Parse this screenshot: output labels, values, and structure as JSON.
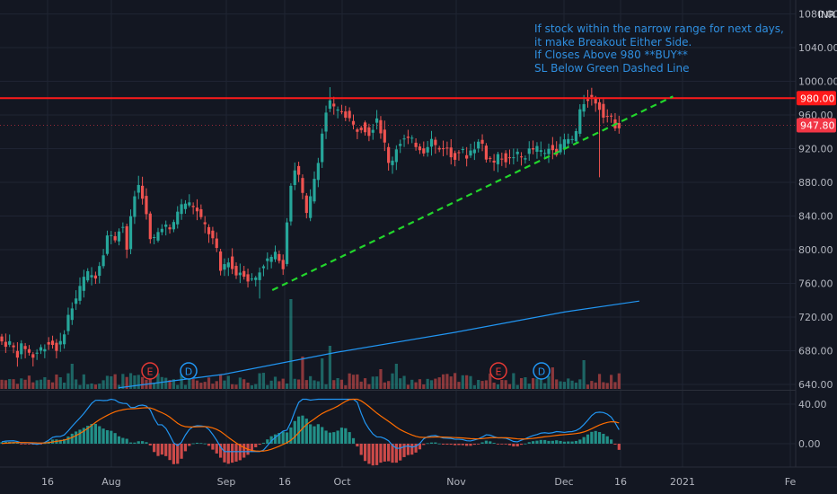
{
  "chart_data": {
    "type": "candlestick",
    "currency": "INR",
    "price_axis": {
      "ticks": [
        "1080.00",
        "1040.00",
        "1000.00",
        "960.00",
        "920.00",
        "880.00",
        "840.00",
        "800.00",
        "760.00",
        "720.00",
        "680.00",
        "640.00"
      ],
      "range": [
        620,
        1085
      ]
    },
    "oscillator_axis": {
      "ticks": [
        "40.00",
        "0.00"
      ],
      "range": [
        -10,
        48
      ]
    },
    "time_axis": {
      "ticks": [
        "16",
        "Aug",
        "Sep",
        "16",
        "Oct",
        "Nov",
        "Dec",
        "16",
        "2021",
        "Fe"
      ]
    },
    "last_price": {
      "value": 947.8,
      "label": "947.80",
      "color": "#f23645"
    },
    "resistance": {
      "value": 980,
      "label": "980.00",
      "color": "#ff1a1a"
    },
    "support_trendline": {
      "from": {
        "date": "2020-09-14",
        "price": 752
      },
      "to": {
        "date": "2020-12-30",
        "price": 982
      },
      "color": "#22d62c"
    },
    "moving_average_approx": [
      {
        "date": "2020-08-04",
        "value": 636
      },
      {
        "date": "2020-09-01",
        "value": 652
      },
      {
        "date": "2020-10-01",
        "value": 678
      },
      {
        "date": "2020-11-02",
        "value": 702
      },
      {
        "date": "2020-12-01",
        "value": 726
      },
      {
        "date": "2020-12-21",
        "value": 739
      }
    ],
    "earnings_markers": [
      "E",
      "E"
    ],
    "dividend_markers": [
      "D",
      "D"
    ],
    "colors": {
      "up": "#26a69a",
      "down": "#ef5350",
      "ma": "#2196f3",
      "macd": "#2196f3",
      "signal": "#ff6d00"
    },
    "annotation": [
      "If stock within the narrow range for next days,",
      "it make Breakout Either Side.",
      "If Closes Above 980 **BUY**",
      "SL Below Green Dashed Line"
    ]
  }
}
